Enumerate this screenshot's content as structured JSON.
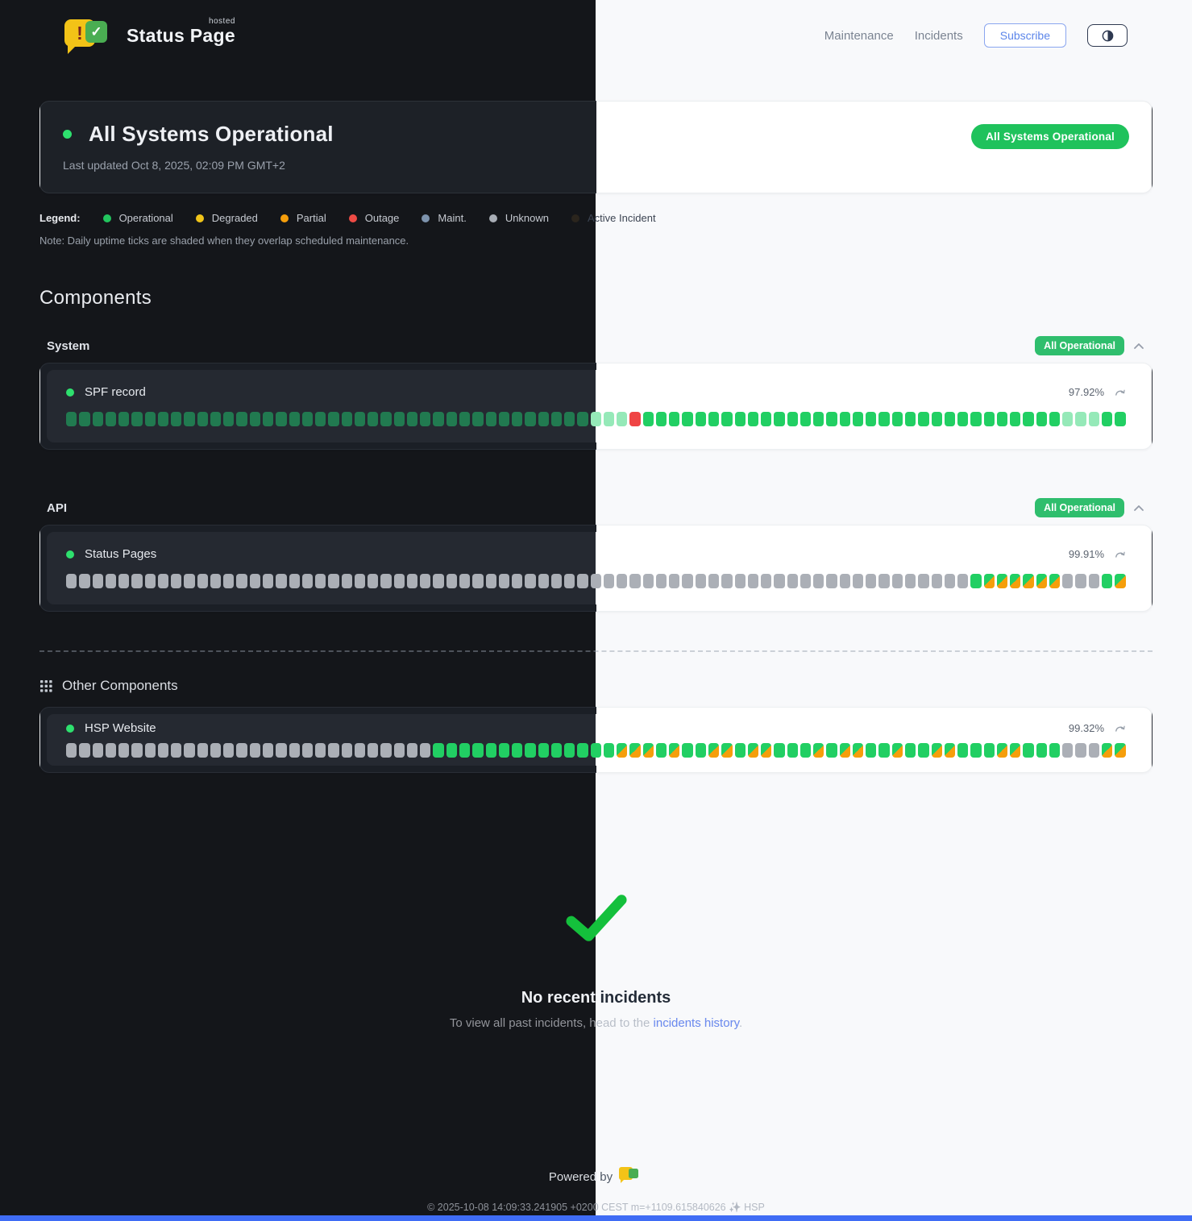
{
  "brand": {
    "name": "Status Page",
    "tag": "hosted"
  },
  "nav": {
    "links": [
      "Maintenance",
      "Incidents"
    ],
    "subscribe_label": "Subscribe"
  },
  "status": {
    "title": "All Systems Operational",
    "updated": "Last updated Oct 8, 2025, 02:09 PM GMT+2",
    "badge": "All Systems Operational"
  },
  "legend": {
    "label": "Legend:",
    "items": [
      {
        "name": "Operational",
        "color": "#22c55e",
        "side": "dark"
      },
      {
        "name": "Degraded",
        "color": "#f0c419",
        "side": "dark"
      },
      {
        "name": "Partial",
        "color": "#f59e0b",
        "side": "dark"
      },
      {
        "name": "Outage",
        "color": "#ee4b45",
        "side": "dark"
      },
      {
        "name": "Maint.",
        "color": "#7d93ad",
        "side": "dark"
      },
      {
        "name": "Unknown",
        "color": "#a8adb5",
        "side": "dark"
      },
      {
        "name": "Active Incident",
        "color": "#2b251d",
        "side": "light"
      }
    ],
    "note": "Note: Daily uptime ticks are shaded when they overlap scheduled maintenance."
  },
  "components": {
    "heading": "Components",
    "groups": [
      {
        "name": "System",
        "badge": "All Operational",
        "items": [
          {
            "name": "SPF record",
            "uptime": "97.92%",
            "ticks": "GGGGGGGGGGGGGGGGGGGGGGGGGGGGGGGGGGGGGGGGfffrggggggggggggggggggggggggggggggggfffgg"
          }
        ]
      },
      {
        "name": "API",
        "badge": "All Operational",
        "items": [
          {
            "name": "Status Pages",
            "uptime": "99.91%",
            "ticks": "uuuuuuuuuuuuuuuuuuuuuuuuuuuuuuuuuuuuuuuuuuuuuuuuuuuuuuuuuuuuuuuuuuuuugmmmmmmuuugm"
          }
        ]
      }
    ],
    "other": {
      "title": "Other Components",
      "items": [
        {
          "name": "HSP Website",
          "uptime": "99.32%",
          "ticks": "uuuuuuuuuuuuuuuuuuuuuuuuuuuuggggggggggggggmmmgmggmmgmmgggmgmmggmggmmgggmmggguuumm"
        }
      ]
    }
  },
  "incidents": {
    "title": "No recent incidents",
    "prefix": "To view all past incidents, head to the ",
    "link_text": "incidents history",
    "suffix": "."
  },
  "footer": {
    "powered_by": "Powered by",
    "copyright": "© 2025-10-08 14:09:33.241905 +0200 CEST m=+1109.615840626 ✨ HSP"
  },
  "theme": {
    "accent_green": "#22c55e",
    "badge_green": "#2fbe6d",
    "hero_badge_green": "#1fc25c",
    "check_green": "#14c03c",
    "link_blue": "#6e8df2",
    "subscribe_blue": "#5c86ea",
    "bottom_bar_blue": "#3f6cf5",
    "tick_colors": {
      "G": "#217a50",
      "g": "#21cf63",
      "f": "#95e9b8",
      "r": "#ef4444",
      "u": "#abafb6"
    },
    "tick_maintenance_split": [
      "#21cf63",
      "#f59e0b"
    ]
  }
}
